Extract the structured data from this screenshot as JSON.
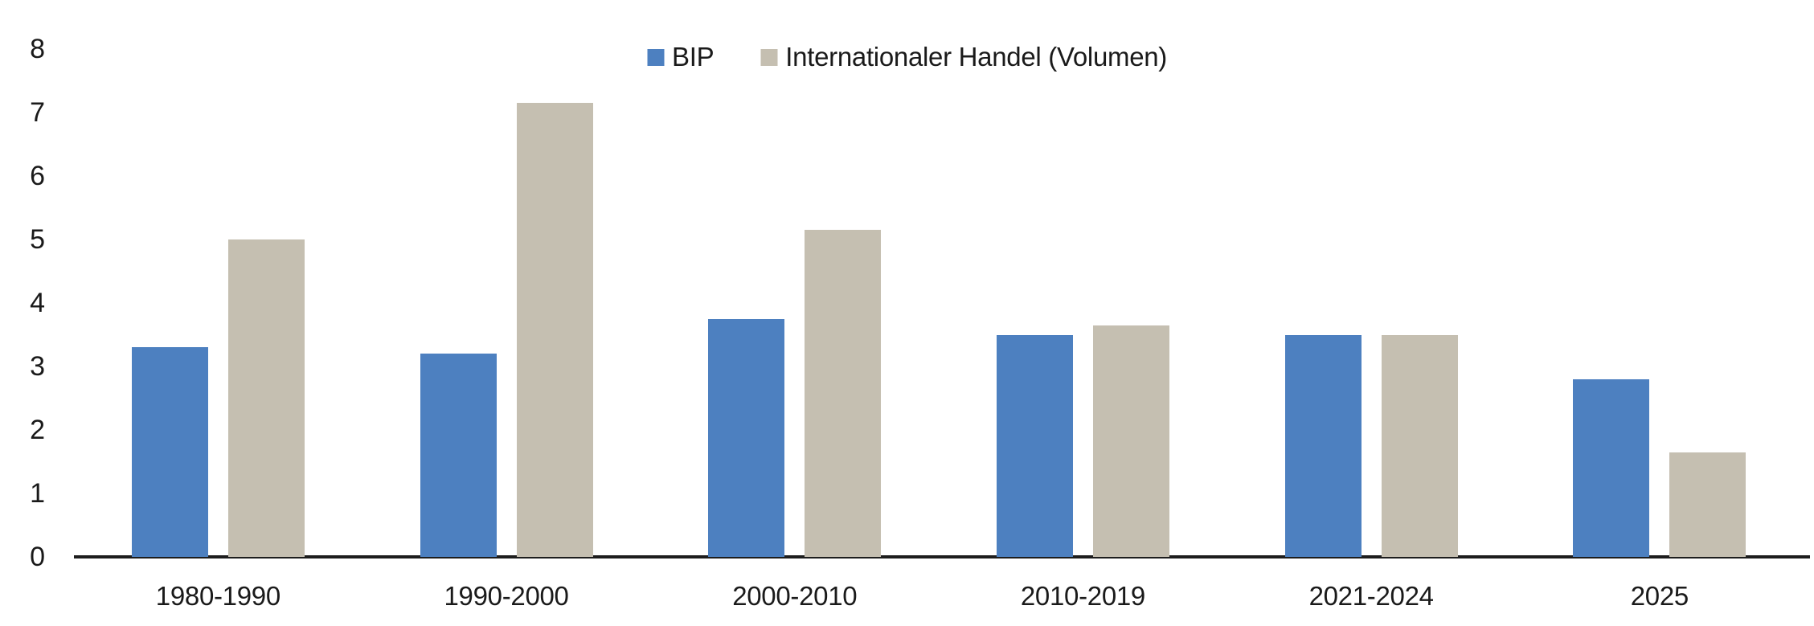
{
  "chart_data": {
    "type": "bar",
    "title": "",
    "categories": [
      "1980-1990",
      "1990-2000",
      "2000-2010",
      "2010-2019",
      "2021-2024",
      "2025"
    ],
    "series": [
      {
        "name": "BIP",
        "color": "#4D80C0",
        "values": [
          3.3,
          3.2,
          3.75,
          3.5,
          3.5,
          2.8
        ]
      },
      {
        "name": "Internationaler Handel (Volumen)",
        "color": "#C5BFB1",
        "values": [
          5.0,
          7.15,
          5.15,
          3.65,
          3.5,
          1.65
        ]
      }
    ],
    "y_ticks": [
      0,
      1,
      2,
      3,
      4,
      5,
      6,
      7,
      8
    ],
    "ylim": [
      0,
      8
    ],
    "xlabel": "",
    "ylabel": "",
    "grid": false,
    "legend_position": "top-center",
    "axis_color": "#1d1d1d",
    "text_color": "#1a1a1a",
    "background_color": "#ffffff"
  }
}
